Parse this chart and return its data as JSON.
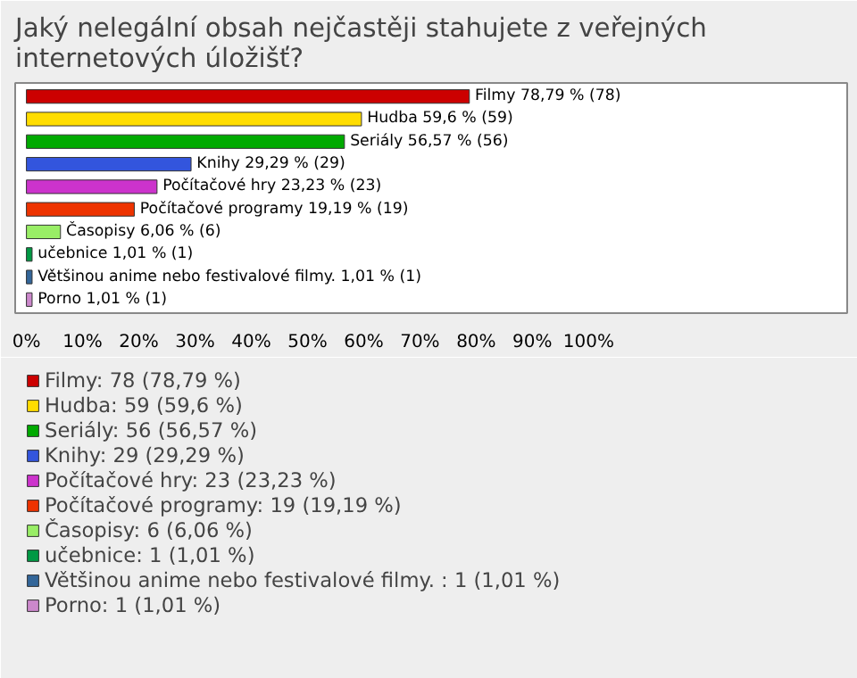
{
  "chart_data": {
    "type": "bar",
    "orientation": "horizontal",
    "title": "Jaký nelegální obsah nejčastěji stahujete z veřejných internetových úložišť?",
    "categories": [
      "Filmy 78,79 % (78)",
      "Hudba 59,6 % (59)",
      "Seriály 56,57 % (56)",
      "Knihy 29,29 % (29)",
      "Počítačové hry 23,23 % (23)",
      "Počítačové programy 19,19 % (19)",
      "Časopisy 6,06 % (6)",
      "učebnice 1,01 % (1)",
      "Většinou anime nebo festivalové filmy.  1,01 % (1)",
      "Porno 1,01 % (1)"
    ],
    "series": [
      {
        "name": "Filmy: 78 (78,79 %)",
        "color": "#cc0000",
        "values": [
          78.79,
          null,
          null,
          null,
          null,
          null,
          null,
          null,
          null,
          null
        ]
      },
      {
        "name": "Hudba: 59 (59,6 %)",
        "color": "#ffdd00",
        "values": [
          null,
          59.6,
          null,
          null,
          null,
          null,
          null,
          null,
          null,
          null
        ]
      },
      {
        "name": "Seriály: 56 (56,57 %)",
        "color": "#00aa00",
        "values": [
          null,
          null,
          56.57,
          null,
          null,
          null,
          null,
          null,
          null,
          null
        ]
      },
      {
        "name": "Knihy: 29 (29,29 %)",
        "color": "#3355dd",
        "values": [
          null,
          null,
          null,
          29.29,
          null,
          null,
          null,
          null,
          null,
          null
        ]
      },
      {
        "name": "Počítačové hry: 23 (23,23 %)",
        "color": "#cc33cc",
        "values": [
          null,
          null,
          null,
          null,
          23.23,
          null,
          null,
          null,
          null,
          null
        ]
      },
      {
        "name": "Počítačové programy: 19 (19,19 %)",
        "color": "#ee3300",
        "values": [
          null,
          null,
          null,
          null,
          null,
          19.19,
          null,
          null,
          null,
          null
        ]
      },
      {
        "name": "Časopisy: 6 (6,06 %)",
        "color": "#99ee66",
        "values": [
          null,
          null,
          null,
          null,
          null,
          null,
          6.06,
          null,
          null,
          null
        ]
      },
      {
        "name": "učebnice: 1 (1,01 %)",
        "color": "#009944",
        "values": [
          null,
          null,
          null,
          null,
          null,
          null,
          null,
          1.01,
          null,
          null
        ]
      },
      {
        "name": "Většinou anime nebo festivalové filmy. : 1 (1,01 %)",
        "color": "#336699",
        "values": [
          null,
          null,
          null,
          null,
          null,
          null,
          null,
          null,
          1.01,
          null
        ]
      },
      {
        "name": "Porno: 1 (1,01 %)",
        "color": "#cc88cc",
        "values": [
          null,
          null,
          null,
          null,
          null,
          null,
          null,
          null,
          null,
          1.01
        ]
      }
    ],
    "xlim": [
      -2,
      146
    ],
    "xticks": [
      {
        "value": 0,
        "label": "0%"
      },
      {
        "value": 10,
        "label": "10%"
      },
      {
        "value": 20,
        "label": "20%"
      },
      {
        "value": 30,
        "label": "30%"
      },
      {
        "value": 40,
        "label": "40%"
      },
      {
        "value": 50,
        "label": "50%"
      },
      {
        "value": 60,
        "label": "60%"
      },
      {
        "value": 70,
        "label": "70%"
      },
      {
        "value": 80,
        "label": "80%"
      },
      {
        "value": 90,
        "label": "90%"
      },
      {
        "value": 100,
        "label": "100%"
      }
    ],
    "stacked": true,
    "legend": "bottom"
  }
}
